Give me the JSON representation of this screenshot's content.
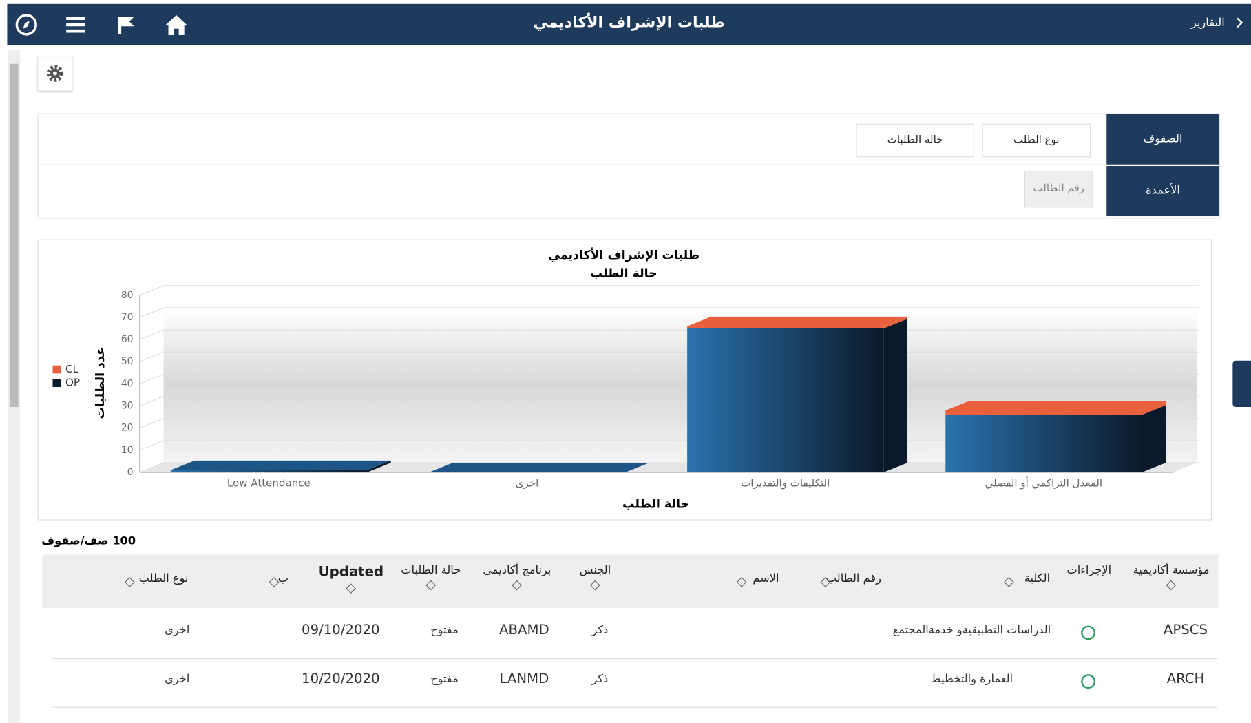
{
  "header": {
    "title": "طلبات الإشراف الأكاديمي",
    "back": "التقارير"
  },
  "pivot": {
    "rows_label": "الصفوف",
    "columns_label": "الأعمدة",
    "row_fields": [
      "نوع الطلب",
      "حالة الطلبات"
    ],
    "column_fields": [
      "رقم الطالب"
    ]
  },
  "chart_data": {
    "type": "bar3d",
    "title": "طلبات الإشراف الأكاديمي",
    "subtitle": "حالة الطلب",
    "x_label": "حالة الطلب",
    "y_label": "عدد الطلبات",
    "categories": [
      "Low Attendance",
      "اخرى",
      "التكليفات والتقديرات",
      "المعدل التراكمي أو الفصلي"
    ],
    "series": [
      {
        "name": "OP",
        "color": "#0b1a2a",
        "values": [
          1,
          0,
          65,
          26
        ]
      },
      {
        "name": "CL",
        "color": "#e8603c",
        "values": [
          0,
          0,
          1,
          2
        ]
      }
    ],
    "ylim": [
      0,
      80
    ],
    "yticks": [
      0,
      10,
      20,
      30,
      40,
      50,
      60,
      70,
      80
    ],
    "stacked": true,
    "grid": true,
    "legend": "left"
  },
  "table": {
    "row_count": "100 صف/صفوف",
    "headers": [
      "مؤسسة أكاديمية",
      "الإجراءات",
      "الكلية",
      "رقم الطالب",
      "الاسم",
      "الجنس",
      "برنامج أكاديمي",
      "حالة الطلبات",
      "Updated",
      "ب",
      "نوع الطلب"
    ],
    "rows": [
      {
        "institution": "APSCS",
        "college": "الدراسات التطبيقيةو خدمةالمجتمع",
        "gender": "ذكر",
        "program": "ABAMD",
        "status": "مفتوح",
        "updated": "09/10/2020",
        "type": "اخرى"
      },
      {
        "institution": "ARCH",
        "college": "العمارة والتخطيط",
        "gender": "ذكر",
        "program": "LANMD",
        "status": "مفتوح",
        "updated": "10/20/2020",
        "type": "اخرى"
      }
    ]
  }
}
